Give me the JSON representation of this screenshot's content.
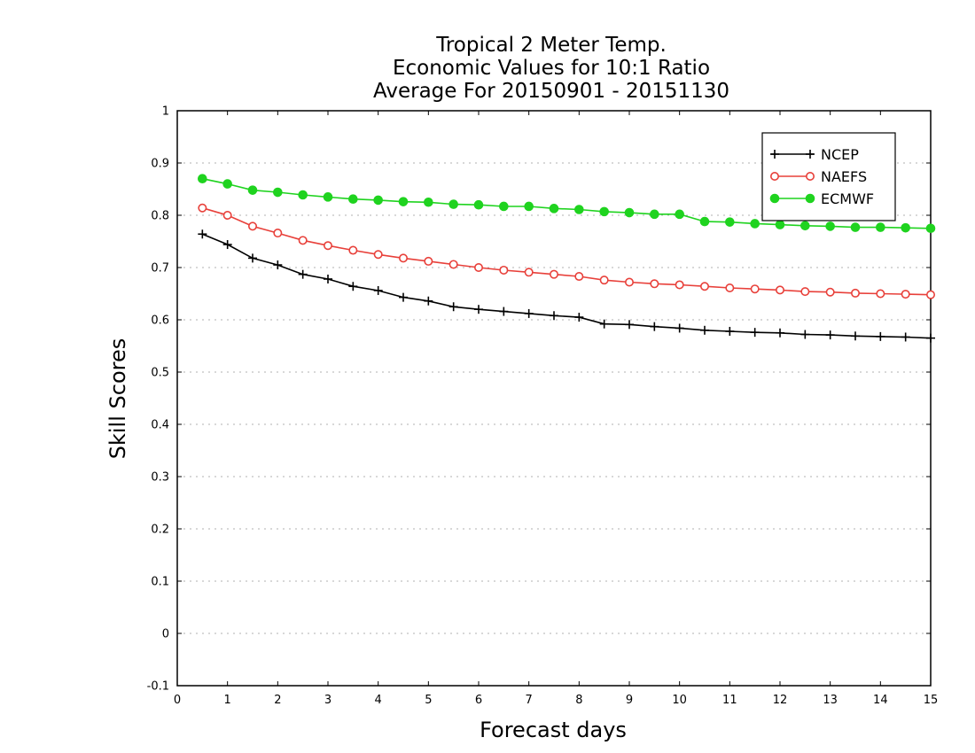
{
  "chart_data": {
    "type": "line",
    "title": "Tropical 2 Meter Temp.",
    "subtitle": [
      "Economic Values for 10:1 Ratio",
      "Average For 20150901 - 20151130"
    ],
    "xlabel": "Forecast days",
    "ylabel": "Skill Scores",
    "xlim": [
      0,
      15
    ],
    "ylim": [
      -0.1,
      1
    ],
    "x_ticks": [
      0,
      1,
      2,
      3,
      4,
      5,
      6,
      7,
      8,
      9,
      10,
      11,
      12,
      13,
      14,
      15
    ],
    "x_tick_labels": [
      "0",
      "1",
      "2",
      "3",
      "4",
      "5",
      "6",
      "7",
      "8",
      "9",
      "10",
      "11",
      "12",
      "13",
      "14",
      "15"
    ],
    "y_ticks": [
      -0.1,
      0,
      0.1,
      0.2,
      0.3,
      0.4,
      0.5,
      0.6,
      0.7,
      0.8,
      0.9,
      1
    ],
    "y_tick_labels": [
      "-0.1",
      "0",
      "0.1",
      "0.2",
      "0.3",
      "0.4",
      "0.5",
      "0.6",
      "0.7",
      "0.8",
      "0.9",
      "1"
    ],
    "grid": "horizontal-dotted",
    "legend_position": "top-right",
    "x": [
      0.5,
      1,
      1.5,
      2,
      2.5,
      3,
      3.5,
      4,
      4.5,
      5,
      5.5,
      6,
      6.5,
      7,
      7.5,
      8,
      8.5,
      9,
      9.5,
      10,
      10.5,
      11,
      11.5,
      12,
      12.5,
      13,
      13.5,
      14,
      14.5,
      15
    ],
    "series": [
      {
        "name": "NCEP",
        "color": "#000000",
        "marker": "plus",
        "values": [
          0.764,
          0.744,
          0.718,
          0.705,
          0.687,
          0.678,
          0.664,
          0.656,
          0.643,
          0.636,
          0.625,
          0.62,
          0.616,
          0.612,
          0.608,
          0.605,
          0.592,
          0.591,
          0.587,
          0.584,
          0.58,
          0.578,
          0.576,
          0.575,
          0.572,
          0.571,
          0.569,
          0.568,
          0.567,
          0.565
        ]
      },
      {
        "name": "NAEFS",
        "color": "#e8403a",
        "marker": "open-circle",
        "values": [
          0.814,
          0.8,
          0.779,
          0.766,
          0.752,
          0.742,
          0.733,
          0.725,
          0.718,
          0.712,
          0.706,
          0.7,
          0.695,
          0.691,
          0.687,
          0.683,
          0.676,
          0.672,
          0.669,
          0.667,
          0.664,
          0.661,
          0.659,
          0.657,
          0.654,
          0.653,
          0.651,
          0.65,
          0.649,
          0.648
        ]
      },
      {
        "name": "ECMWF",
        "color": "#1fd31f",
        "marker": "filled-circle",
        "values": [
          0.87,
          0.86,
          0.848,
          0.844,
          0.839,
          0.835,
          0.831,
          0.829,
          0.826,
          0.825,
          0.821,
          0.82,
          0.817,
          0.817,
          0.813,
          0.811,
          0.807,
          0.805,
          0.802,
          0.802,
          0.788,
          0.787,
          0.784,
          0.782,
          0.78,
          0.779,
          0.777,
          0.777,
          0.776,
          0.775
        ]
      }
    ]
  }
}
